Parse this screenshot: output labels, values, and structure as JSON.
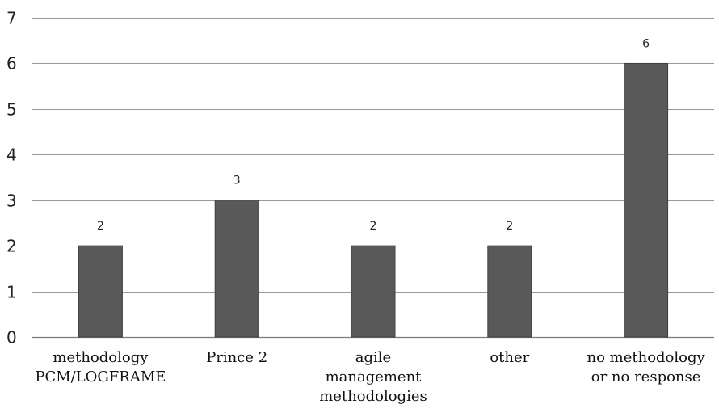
{
  "chart_data": {
    "type": "bar",
    "categories": [
      [
        "methodology",
        "PCM/LOGFRAME"
      ],
      [
        "Prince 2"
      ],
      [
        "agile",
        "management",
        "methodologies"
      ],
      [
        "other"
      ],
      [
        "no methodology",
        "or no response"
      ]
    ],
    "values": [
      2,
      3,
      2,
      2,
      6
    ],
    "data_labels": [
      "2",
      "3",
      "2",
      "2",
      "6"
    ],
    "ylim": [
      0,
      7
    ],
    "yticks": [
      0,
      1,
      2,
      3,
      4,
      5,
      6,
      7
    ],
    "grid": true,
    "legend": "none",
    "colors": {
      "bar": "#595959",
      "bar_edge": "#404040"
    }
  }
}
